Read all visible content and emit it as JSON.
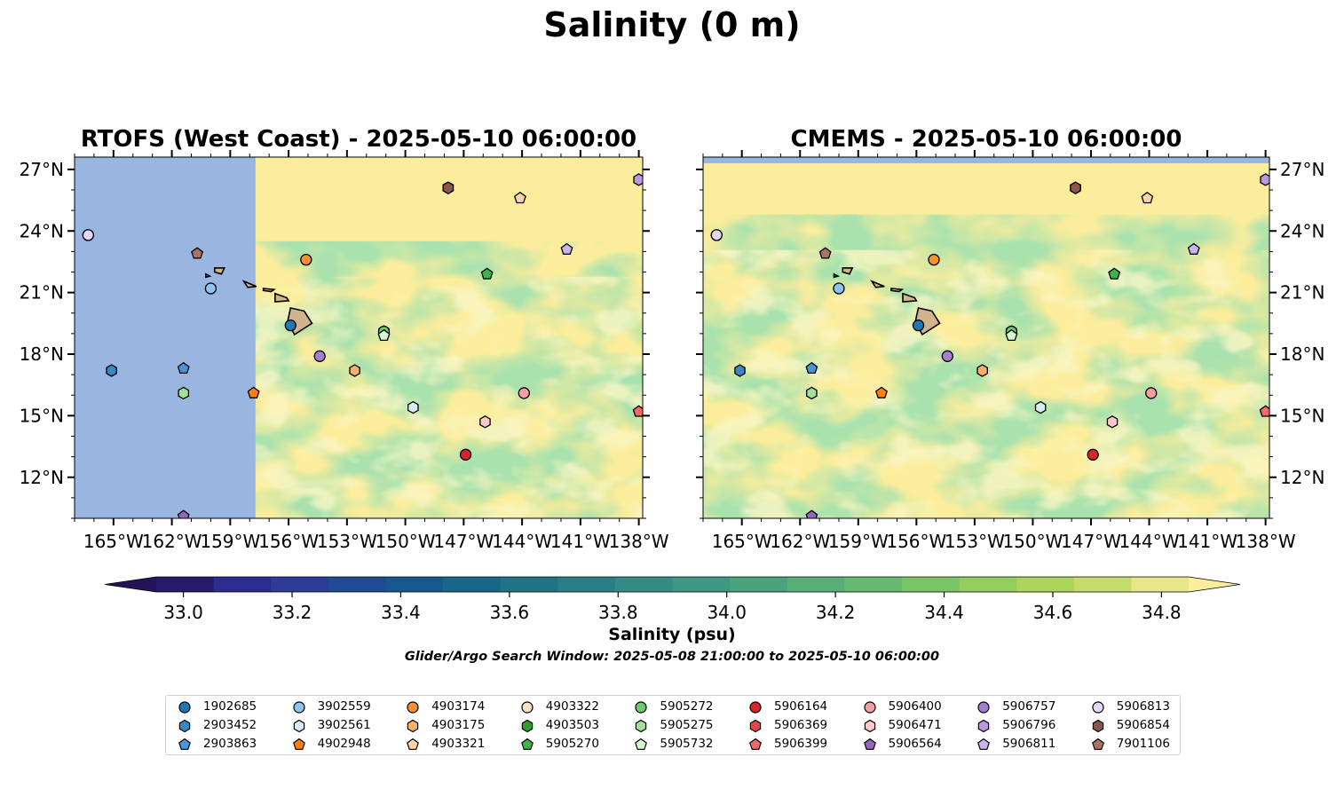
{
  "title": "Salinity (0 m)",
  "panels": [
    {
      "title": "RTOFS (West Coast) - 2025-05-10 06:00:00",
      "land_color": "#d2b48c",
      "ocean_mask_color": "#98b6e0"
    },
    {
      "title": "CMEMS - 2025-05-10 06:00:00",
      "land_color": "#d2b48c",
      "ocean_mask_color": "#98b6e0"
    }
  ],
  "map_extent": {
    "lon_min": -167,
    "lon_max": -137.8,
    "lat_min": 10,
    "lat_max": 27.6
  },
  "lon_ticks": [
    {
      "lon": -165,
      "label": "165°W"
    },
    {
      "lon": -162,
      "label": "162°W"
    },
    {
      "lon": -159,
      "label": "159°W"
    },
    {
      "lon": -156,
      "label": "156°W"
    },
    {
      "lon": -153,
      "label": "153°W"
    },
    {
      "lon": -150,
      "label": "150°W"
    },
    {
      "lon": -147,
      "label": "147°W"
    },
    {
      "lon": -144,
      "label": "144°W"
    },
    {
      "lon": -141,
      "label": "141°W"
    },
    {
      "lon": -138,
      "label": "138°W"
    }
  ],
  "lat_ticks": [
    {
      "lat": 27,
      "label": "27°N"
    },
    {
      "lat": 24,
      "label": "24°N"
    },
    {
      "lat": 21,
      "label": "21°N"
    },
    {
      "lat": 18,
      "label": "18°N"
    },
    {
      "lat": 15,
      "label": "15°N"
    },
    {
      "lat": 12,
      "label": "12°N"
    }
  ],
  "colorbar": {
    "label": "Salinity (psu)",
    "min": 32.9,
    "max": 34.9,
    "step": 0.1,
    "ticks": [
      "33.0",
      "33.2",
      "33.4",
      "33.6",
      "33.8",
      "34.0",
      "34.2",
      "34.4",
      "34.6",
      "34.8"
    ],
    "colors": [
      "#2a1a6b",
      "#2d2a90",
      "#2d3a98",
      "#1f4a94",
      "#17598e",
      "#1a6689",
      "#227286",
      "#2b7e85",
      "#358a84",
      "#3f9681",
      "#4ba27c",
      "#58ae76",
      "#67b96f",
      "#7bc466",
      "#92cd5e",
      "#aad45a",
      "#c6dc6a",
      "#e6e68a"
    ],
    "under_color": "#25135a",
    "over_color": "#fbed9c"
  },
  "search_window": "Glider/Argo Search Window: 2025-05-08 21:00:00 to 2025-05-10 06:00:00",
  "floats": [
    {
      "id": "1902685",
      "color": "#1f77b4",
      "marker": "circle",
      "lon": -155.9,
      "lat": 19.4
    },
    {
      "id": "2903452",
      "color": "#3a87c8",
      "marker": "hexagon",
      "lon": -165.1,
      "lat": 17.2
    },
    {
      "id": "2903863",
      "color": "#4a95d8",
      "marker": "pentagon",
      "lon": -161.4,
      "lat": 17.3
    },
    {
      "id": "3902559",
      "color": "#8fc4ec",
      "marker": "circle",
      "lon": -160.0,
      "lat": 21.2
    },
    {
      "id": "3902561",
      "color": "#d8ecf8",
      "marker": "hexagon",
      "lon": -149.6,
      "lat": 15.4
    },
    {
      "id": "4902948",
      "color": "#ff7f0e",
      "marker": "pentagon",
      "lon": -157.8,
      "lat": 16.1
    },
    {
      "id": "4903174",
      "color": "#f5922e",
      "marker": "circle",
      "lon": -155.1,
      "lat": 22.6
    },
    {
      "id": "4903175",
      "color": "#fbb06a",
      "marker": "hexagon",
      "lon": -152.6,
      "lat": 17.2
    },
    {
      "id": "4903321",
      "color": "#fdd3a5",
      "marker": "pentagon",
      "lon": -144.1,
      "lat": 25.6
    },
    {
      "id": "4903322",
      "color": "#fde0c5",
      "marker": "circle",
      "lon": -166.3,
      "lat": 23.8
    },
    {
      "id": "4903503",
      "color": "#2ca02c",
      "marker": "hexagon",
      "lon": -151.1,
      "lat": 19.1
    },
    {
      "id": "5905270",
      "color": "#3cb44b",
      "marker": "pentagon",
      "lon": -145.8,
      "lat": 21.9
    },
    {
      "id": "5905272",
      "color": "#6ccc6a",
      "marker": "circle",
      "lon": -151.1,
      "lat": 19.1
    },
    {
      "id": "5905275",
      "color": "#a3e09a",
      "marker": "hexagon",
      "lon": -161.4,
      "lat": 16.1
    },
    {
      "id": "5905732",
      "color": "#d6f5d0",
      "marker": "pentagon",
      "lon": -151.1,
      "lat": 18.9
    },
    {
      "id": "5906164",
      "color": "#d62728",
      "marker": "circle",
      "lon": -146.9,
      "lat": 13.1
    },
    {
      "id": "5906369",
      "color": "#e04848",
      "marker": "hexagon",
      "lon": -147.8,
      "lat": 26.1
    },
    {
      "id": "5906399",
      "color": "#f06a6a",
      "marker": "pentagon",
      "lon": -138.0,
      "lat": 15.2
    },
    {
      "id": "5906400",
      "color": "#f4a0a0",
      "marker": "circle",
      "lon": -143.9,
      "lat": 16.1
    },
    {
      "id": "5906471",
      "color": "#fac9c9",
      "marker": "hexagon",
      "lon": -145.9,
      "lat": 14.7
    },
    {
      "id": "5906564",
      "color": "#9467bd",
      "marker": "pentagon",
      "lon": -161.4,
      "lat": 10.1
    },
    {
      "id": "5906757",
      "color": "#a47fcf",
      "marker": "circle",
      "lon": -154.4,
      "lat": 17.9
    },
    {
      "id": "5906796",
      "color": "#b99ae0",
      "marker": "hexagon",
      "lon": -138.0,
      "lat": 26.5
    },
    {
      "id": "5906811",
      "color": "#cbb4ee",
      "marker": "pentagon",
      "lon": -141.7,
      "lat": 23.1
    },
    {
      "id": "5906813",
      "color": "#e6d7f8",
      "marker": "circle",
      "lon": -166.3,
      "lat": 23.8
    },
    {
      "id": "5906854",
      "color": "#8c564b",
      "marker": "hexagon",
      "lon": -147.8,
      "lat": 26.1
    },
    {
      "id": "7901106",
      "color": "#a87565",
      "marker": "pentagon",
      "lon": -160.7,
      "lat": 22.9
    }
  ]
}
